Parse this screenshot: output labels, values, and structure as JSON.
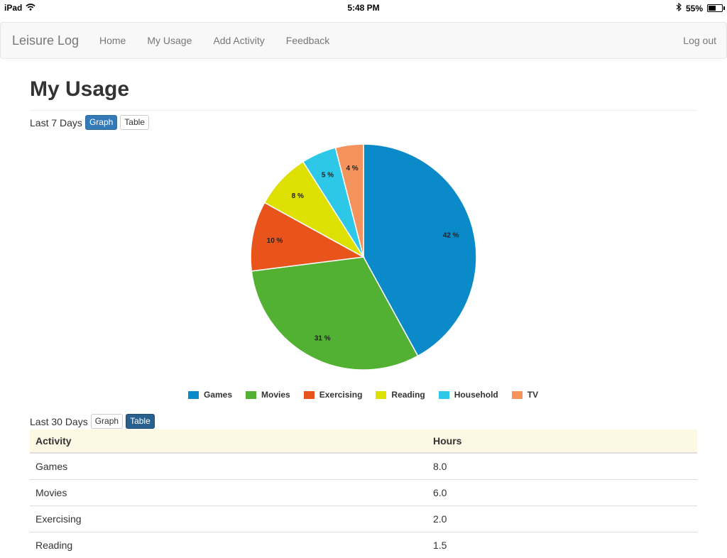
{
  "status": {
    "device": "iPad",
    "time": "5:48 PM",
    "battery": "55%",
    "battery_level": 0.55
  },
  "nav": {
    "brand": "Leisure Log",
    "items": [
      "Home",
      "My Usage",
      "Add Activity",
      "Feedback"
    ],
    "logout": "Log out"
  },
  "page": {
    "title": "My Usage"
  },
  "section7": {
    "label": "Last 7 Days",
    "graph_btn": "Graph",
    "table_btn": "Table",
    "selected": "Graph"
  },
  "section30": {
    "label": "Last 30 Days",
    "graph_btn": "Graph",
    "table_btn": "Table",
    "selected": "Table"
  },
  "chart_data": {
    "type": "pie",
    "categories": [
      "Games",
      "Movies",
      "Exercising",
      "Reading",
      "Household",
      "TV"
    ],
    "values": [
      42,
      31,
      10,
      8,
      5,
      4
    ],
    "labels": [
      "42 %",
      "31 %",
      "10 %",
      "8 %",
      "5 %",
      "4 %"
    ],
    "colors": [
      "#0a8ac8",
      "#52b033",
      "#e8541c",
      "#dde000",
      "#2dc8e8",
      "#f4945c"
    ],
    "legend_position": "bottom"
  },
  "table": {
    "headers": [
      "Activity",
      "Hours"
    ],
    "rows": [
      [
        "Games",
        "8.0"
      ],
      [
        "Movies",
        "6.0"
      ],
      [
        "Exercising",
        "2.0"
      ],
      [
        "Reading",
        "1.5"
      ]
    ]
  }
}
